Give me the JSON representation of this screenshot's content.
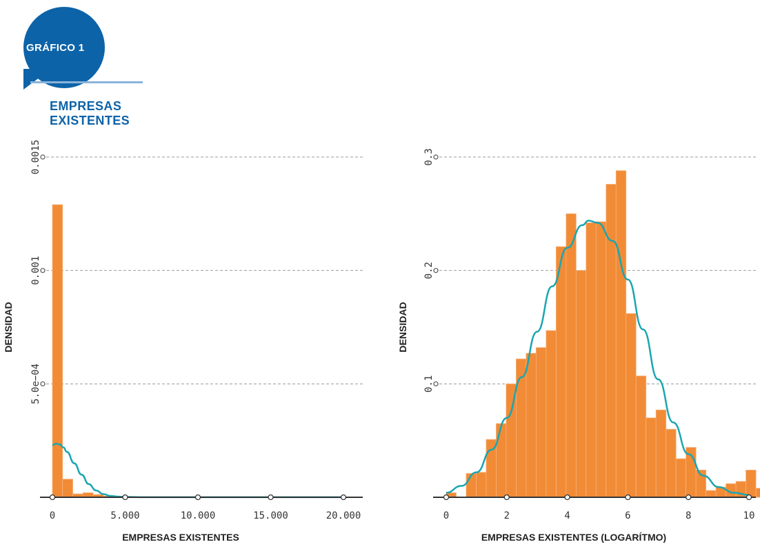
{
  "header": {
    "badge": "GRÁFICO 1",
    "subtitle": "EMPRESAS EXISTENTES"
  },
  "colors": {
    "brand_blue": "#0d63a8",
    "rule": "#8ab3da",
    "bar": "#f28b36",
    "curve": "#1aa5b0",
    "grid": "#9a9a9a"
  },
  "chart_data": [
    {
      "type": "bar",
      "xlabel": "EMPRESAS EXISTENTES",
      "ylabel": "DENSIDAD",
      "xlim": [
        -300,
        20600
      ],
      "ylim": [
        0,
        0.0015
      ],
      "x_ticks": [
        0,
        5000,
        10000,
        15000,
        20000
      ],
      "x_tick_labels": [
        "0",
        "5.000",
        "10.000",
        "15.000",
        "20.000"
      ],
      "y_ticks": [
        0.0005,
        0.001,
        0.0015
      ],
      "y_tick_labels": [
        "5.0e−04",
        "0.001",
        "0.0015"
      ],
      "grid": true,
      "bin_width": 700,
      "bin_start": 0,
      "values": [
        0.00129,
        8e-05,
        1.5e-05,
        2e-05,
        1.2e-05,
        6e-06,
        3e-06,
        2e-06,
        1e-06,
        1e-06,
        1e-06,
        5e-07,
        5e-07,
        5e-07,
        3e-07,
        3e-07,
        3e-07,
        2e-07,
        2e-07,
        2e-07,
        2e-07,
        2e-07,
        2e-07,
        2e-07,
        2e-07,
        2e-07,
        2e-07,
        2e-07,
        2e-07
      ],
      "density_curve": {
        "x": [
          0,
          250,
          500,
          750,
          1000,
          1500,
          2000,
          2500,
          3000,
          3500,
          4000,
          4500,
          5000,
          6000,
          8000,
          12000,
          16000,
          20000
        ],
        "y": [
          0.00023,
          0.000236,
          0.000233,
          0.00022,
          0.0002,
          0.00015,
          0.0001,
          5.8e-05,
          3e-05,
          1.4e-05,
          6e-06,
          3e-06,
          1.5e-06,
          5e-07,
          3e-07,
          3e-07,
          3e-07,
          3e-07
        ]
      }
    },
    {
      "type": "bar",
      "xlabel": "EMPRESAS EXISTENTES (LOGARÍTMO)",
      "ylabel": "DENSIDAD",
      "xlim": [
        -0.3,
        10.1
      ],
      "ylim": [
        0,
        0.3
      ],
      "x_ticks": [
        0,
        2,
        4,
        6,
        8,
        10
      ],
      "x_tick_labels": [
        "0",
        "2",
        "4",
        "6",
        "8",
        "10"
      ],
      "y_ticks": [
        0.1,
        0.2,
        0.3
      ],
      "y_tick_labels": [
        "0.1",
        "0.2",
        "0.3"
      ],
      "grid": true,
      "bin_width": 0.33,
      "bin_start": 0,
      "values": [
        0.004,
        0.0,
        0.021,
        0.022,
        0.051,
        0.065,
        0.1,
        0.122,
        0.127,
        0.132,
        0.147,
        0.221,
        0.25,
        0.2,
        0.242,
        0.243,
        0.276,
        0.288,
        0.162,
        0.107,
        0.07,
        0.077,
        0.06,
        0.034,
        0.044,
        0.024,
        0.006,
        0.009,
        0.012,
        0.014,
        0.024,
        0.008
      ],
      "density_curve": {
        "x": [
          0,
          0.5,
          1,
          1.5,
          2,
          2.5,
          3,
          3.5,
          4,
          4.5,
          4.7,
          5,
          5.5,
          6,
          6.5,
          7,
          7.5,
          8,
          8.5,
          9,
          9.5,
          10
        ],
        "y": [
          0.004,
          0.01,
          0.022,
          0.042,
          0.07,
          0.106,
          0.146,
          0.186,
          0.22,
          0.24,
          0.244,
          0.242,
          0.226,
          0.192,
          0.148,
          0.104,
          0.066,
          0.038,
          0.019,
          0.009,
          0.004,
          0.002
        ]
      }
    }
  ]
}
